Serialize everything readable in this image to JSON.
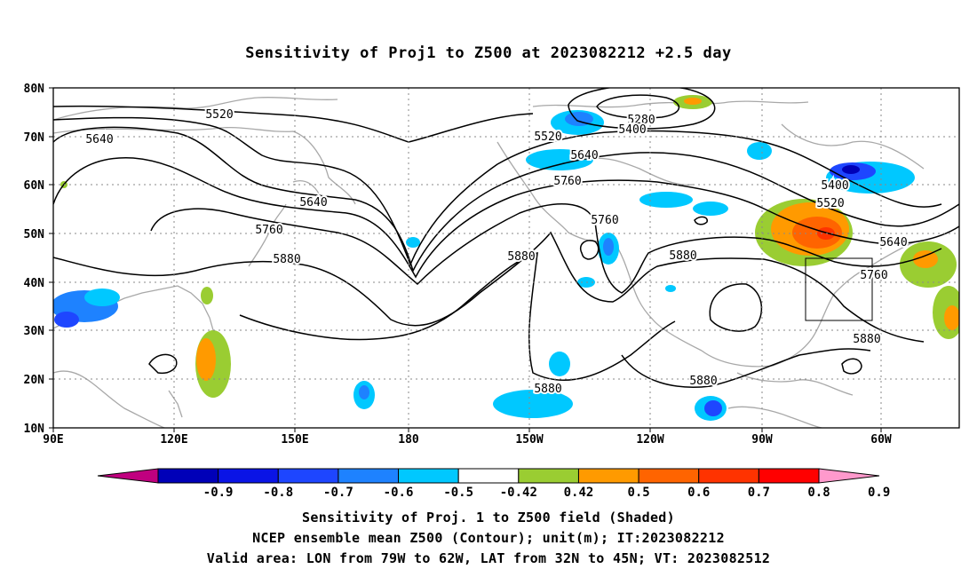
{
  "title": "Sensitivity of Proj1 to Z500 at 2023082212 +2.5 day",
  "axes": {
    "lat_labels": [
      "80N",
      "70N",
      "60N",
      "50N",
      "40N",
      "30N",
      "20N",
      "10N"
    ],
    "lon_labels": [
      "90E",
      "120E",
      "150E",
      "180",
      "150W",
      "120W",
      "90W",
      "60W"
    ]
  },
  "contours": [
    {
      "level": "5280"
    },
    {
      "level": "5400"
    },
    {
      "level": "5520"
    },
    {
      "level": "5640"
    },
    {
      "level": "5760"
    },
    {
      "level": "5880"
    }
  ],
  "contour_labels": [
    "5520",
    "5640",
    "5640",
    "5760",
    "5880",
    "5280",
    "5400",
    "5520",
    "5640",
    "5760",
    "5760",
    "5880",
    "5880",
    "5880",
    "5400",
    "5520",
    "5640",
    "5760",
    "5880",
    "5880"
  ],
  "colorbar": {
    "tick_labels": [
      "-0.9",
      "-0.8",
      "-0.7",
      "-0.6",
      "-0.5",
      "-0.42",
      "0.42",
      "0.5",
      "0.6",
      "0.7",
      "0.8",
      "0.9"
    ],
    "colors": [
      "#c0007f",
      "#0000b8",
      "#0a14e6",
      "#1e46ff",
      "#1e82ff",
      "#00c8ff",
      "#ffffff",
      "#9acd32",
      "#ff9a00",
      "#ff6400",
      "#ff3300",
      "#ff0000",
      "#ff99cc"
    ]
  },
  "footer": {
    "line1": "Sensitivity of Proj. 1 to Z500 field (Shaded)",
    "line2": "NCEP ensemble mean Z500 (Contour); unit(m); IT:2023082212",
    "line3": "Valid area: LON from 79W to 62W, LAT from 32N to 45N; VT: 2023082512"
  }
}
